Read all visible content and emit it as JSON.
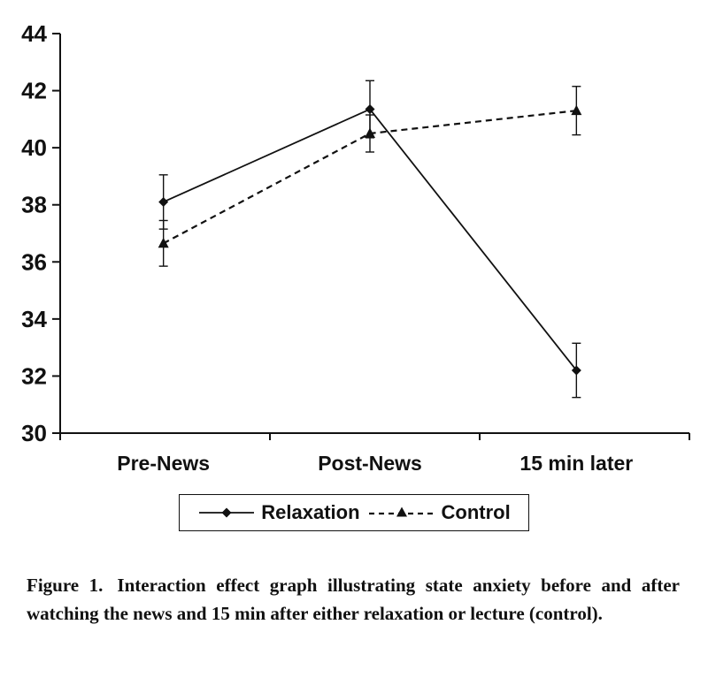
{
  "chart_data": {
    "type": "line",
    "categories": [
      "Pre-News",
      "Post-News",
      "15 min later"
    ],
    "series": [
      {
        "name": "Relaxation",
        "values": [
          38.1,
          41.35,
          32.2
        ],
        "errors": [
          0.95,
          1.0,
          0.95
        ],
        "style": "solid",
        "marker": "diamond"
      },
      {
        "name": "Control",
        "values": [
          36.65,
          40.5,
          41.3
        ],
        "errors": [
          0.8,
          0.65,
          0.85
        ],
        "style": "dashed",
        "marker": "triangle"
      }
    ],
    "title": "",
    "xlabel": "",
    "ylabel": "",
    "ylim": [
      30,
      44
    ],
    "ytick_step": 2,
    "grid": false,
    "legend_position": "bottom",
    "line_color": "#111111",
    "error_bars": true
  },
  "caption": {
    "label": "Figure 1.",
    "body": "Interaction effect graph illustrating state anxiety before and after watching the news and 15 min after either relaxation or lecture (control)."
  }
}
